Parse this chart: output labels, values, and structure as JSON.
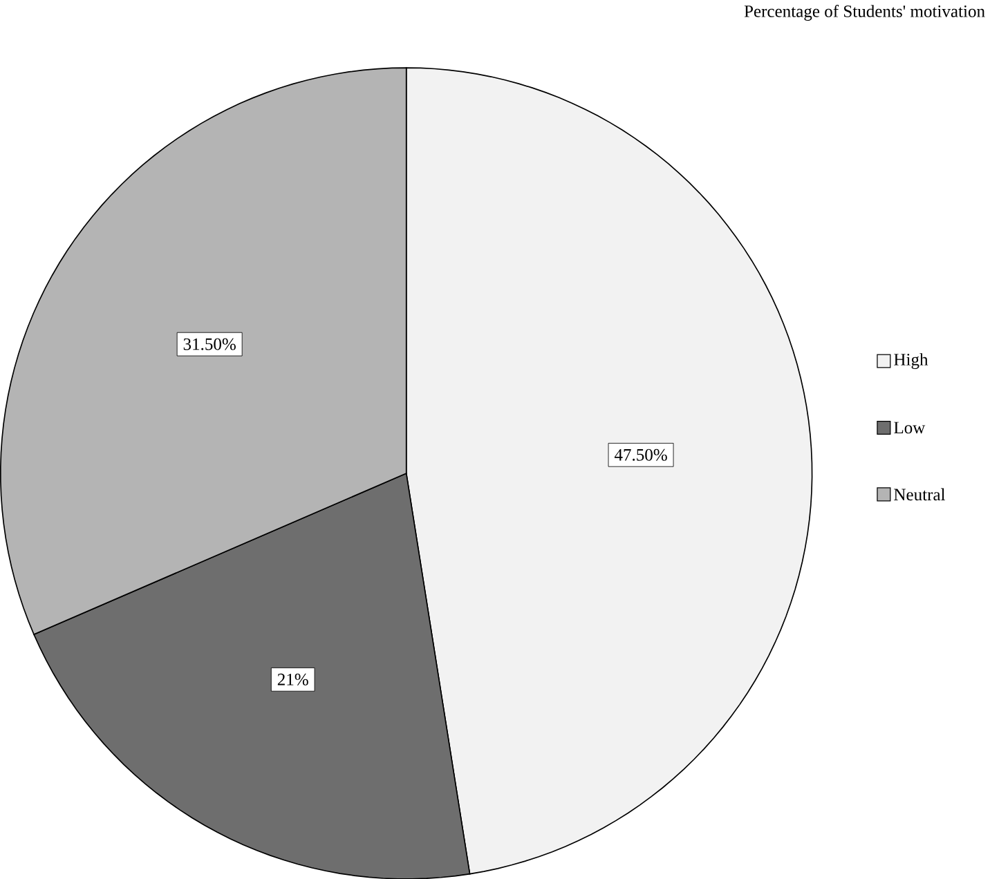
{
  "chart_data": {
    "type": "pie",
    "title": "Percentage of Students' motivation",
    "categories": [
      "High",
      "Low",
      "Neutral"
    ],
    "values": [
      47.5,
      21,
      31.5
    ],
    "value_labels": [
      "47.50%",
      "21%",
      "31.50%"
    ],
    "colors": [
      "#f2f2f2",
      "#6e6e6e",
      "#b4b4b4"
    ],
    "legend": "right"
  }
}
